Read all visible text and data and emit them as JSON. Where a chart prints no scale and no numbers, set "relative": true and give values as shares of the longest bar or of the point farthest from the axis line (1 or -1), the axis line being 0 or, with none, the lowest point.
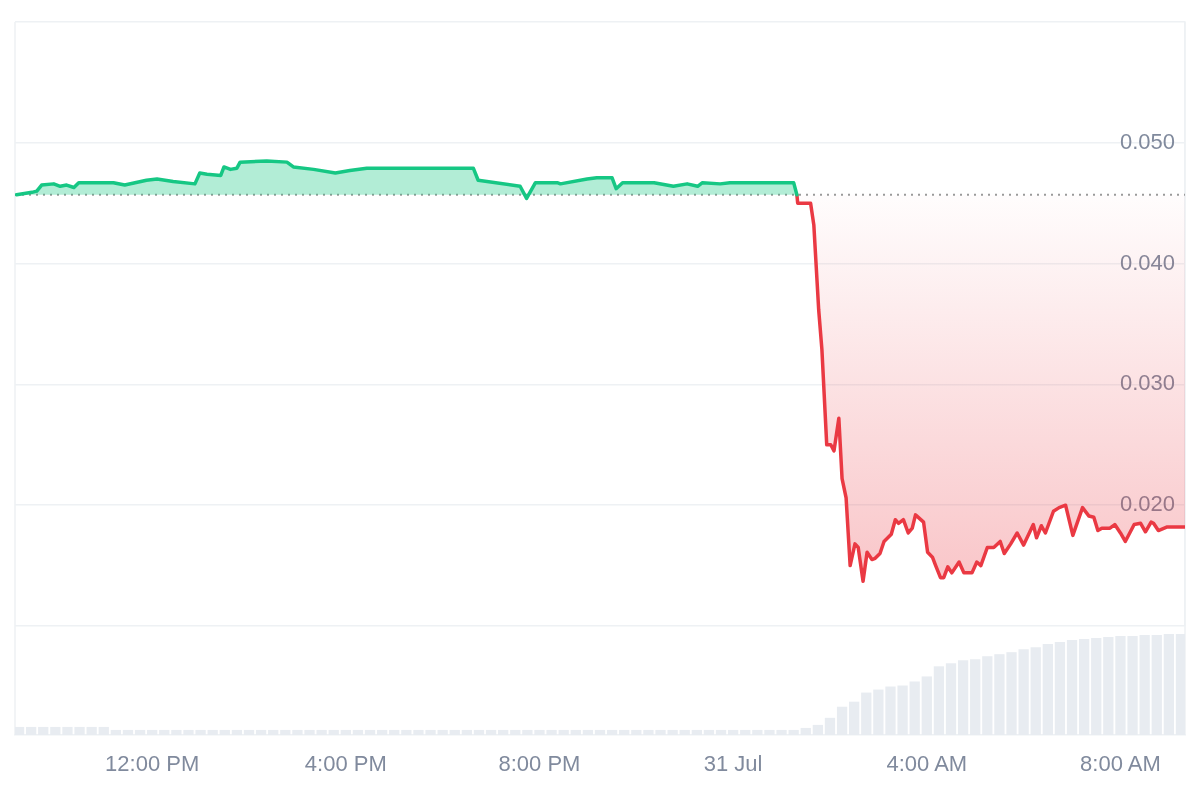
{
  "chart_data": [
    {
      "type": "area",
      "series": [
        {
          "color": "#16c784",
          "x": [
            "--07-30T09:12",
            "--07-30T09:31",
            "--07-30T09:37",
            "--07-30T09:43",
            "--07-30T09:58",
            "--07-30T10:06",
            "--07-30T10:14",
            "--07-30T10:23",
            "--07-30T10:29",
            "--07-30T10:52",
            "--07-30T11:12",
            "--07-30T11:26",
            "--07-30T11:53",
            "--07-30T12:06",
            "--07-30T12:26",
            "--07-30T12:53",
            "--07-30T12:59",
            "--07-30T13:08",
            "--07-30T13:25",
            "--07-30T13:29",
            "--07-30T13:37",
            "--07-30T13:45",
            "--07-30T13:49",
            "--07-30T14:22",
            "--07-30T14:47",
            "--07-30T14:55",
            "--07-30T15:20",
            "--07-30T15:47",
            "--07-30T16:05",
            "--07-30T16:26",
            "--07-30T17:32",
            "--07-30T18:38",
            "--07-30T18:44",
            "--07-30T19:36",
            "--07-30T19:44",
            "--07-30T19:55",
            "--07-30T20:22",
            "--07-30T20:26",
            "--07-30T20:59",
            "--07-30T21:11",
            "--07-30T21:30",
            "--07-30T21:35",
            "--07-30T21:43",
            "--07-30T22:22",
            "--07-30T22:46",
            "--07-30T23:03",
            "--07-30T23:16",
            "--07-30T23:22",
            "--07-30T23:44",
            "--07-30T23:56",
            "--07-31T00:42",
            "--07-31T01:15",
            "--07-31T01:19"
          ],
          "values": [
            0.0457,
            0.0459,
            0.046,
            0.0465,
            0.0466,
            0.0464,
            0.0465,
            0.0463,
            0.0467,
            0.0467,
            0.0467,
            0.0465,
            0.0469,
            0.047,
            0.0468,
            0.0466,
            0.0475,
            0.0474,
            0.0473,
            0.048,
            0.0478,
            0.0479,
            0.0484,
            0.0485,
            0.0484,
            0.048,
            0.0478,
            0.0475,
            0.0477,
            0.0479,
            0.0479,
            0.0479,
            0.0469,
            0.0464,
            0.0454,
            0.0467,
            0.0467,
            0.0466,
            0.047,
            0.0471,
            0.0471,
            0.0462,
            0.0467,
            0.0467,
            0.0464,
            0.0466,
            0.0464,
            0.0467,
            0.0466,
            0.0467,
            0.0467,
            0.0467,
            0.0457
          ]
        },
        {
          "type": "line",
          "color": "#ea3943",
          "x": [
            "--07-31T01:19",
            "--07-31T01:20",
            "--07-31T01:36",
            "--07-31T01:40",
            "--07-31T01:46",
            "--07-31T01:50",
            "--07-31T01:56",
            "--07-31T02:01",
            "--07-31T02:05",
            "--07-31T02:11",
            "--07-31T02:15",
            "--07-31T02:20",
            "--07-31T02:25",
            "--07-31T02:31",
            "--07-31T02:35",
            "--07-31T02:41",
            "--07-31T02:46",
            "--07-31T02:52",
            "--07-31T02:56",
            "--07-31T03:02",
            "--07-31T03:07",
            "--07-31T03:16",
            "--07-31T03:21",
            "--07-31T03:25",
            "--07-31T03:31",
            "--07-31T03:37",
            "--07-31T03:42",
            "--07-31T03:46",
            "--07-31T03:56",
            "--07-31T04:01",
            "--07-31T04:07",
            "--07-31T04:11",
            "--07-31T04:17",
            "--07-31T04:21",
            "--07-31T04:26",
            "--07-31T04:31",
            "--07-31T04:40",
            "--07-31T04:46",
            "--07-31T04:56",
            "--07-31T05:02",
            "--07-31T05:07",
            "--07-31T05:15",
            "--07-31T05:23",
            "--07-31T05:31",
            "--07-31T05:36",
            "--07-31T05:44",
            "--07-31T05:52",
            "--07-31T06:00",
            "--07-31T06:12",
            "--07-31T06:16",
            "--07-31T06:22",
            "--07-31T06:27",
            "--07-31T06:37",
            "--07-31T06:44",
            "--07-31T06:52",
            "--07-31T07:01",
            "--07-31T07:13",
            "--07-31T07:21",
            "--07-31T07:27",
            "--07-31T07:32",
            "--07-31T07:37",
            "--07-31T07:47",
            "--07-31T07:53",
            "--07-31T08:00",
            "--07-31T08:06",
            "--07-31T08:17",
            "--07-31T08:25",
            "--07-31T08:31",
            "--07-31T08:38",
            "--07-31T08:41",
            "--07-31T08:47",
            "--07-31T08:58",
            "--07-31T09:20"
          ],
          "values": [
            0.0457,
            0.045,
            0.045,
            0.0432,
            0.0362,
            0.0329,
            0.025,
            0.025,
            0.0245,
            0.0272,
            0.0222,
            0.0206,
            0.015,
            0.0168,
            0.0165,
            0.0137,
            0.0161,
            0.0155,
            0.0156,
            0.016,
            0.017,
            0.0176,
            0.0188,
            0.0185,
            0.0188,
            0.0177,
            0.0181,
            0.0192,
            0.0186,
            0.0161,
            0.0157,
            0.015,
            0.014,
            0.014,
            0.0149,
            0.0144,
            0.0153,
            0.0144,
            0.0144,
            0.0153,
            0.015,
            0.0165,
            0.0165,
            0.017,
            0.016,
            0.0168,
            0.0177,
            0.0167,
            0.0184,
            0.0173,
            0.0183,
            0.0177,
            0.0195,
            0.0198,
            0.02,
            0.0175,
            0.0198,
            0.0191,
            0.019,
            0.0179,
            0.0181,
            0.0181,
            0.0184,
            0.0177,
            0.017,
            0.0184,
            0.0185,
            0.0178,
            0.0186,
            0.0185,
            0.0179,
            0.0182,
            0.0182
          ],
          "lower": [
            0.0457,
            0.045,
            0.045,
            0.0432,
            0.0362,
            0.0329,
            0.025,
            0.025,
            0.0245,
            0.0272,
            0.0222,
            0.0206,
            0.015,
            0.0168,
            0.0165,
            0.0137,
            0.0161,
            0.0155,
            0.0156,
            0.016,
            0.017,
            0.0176,
            0.0188,
            0.0185,
            0.0188,
            0.0177,
            0.0181,
            0.0192,
            0.0186,
            0.0161,
            0.0157,
            0.015,
            0.014,
            0.014,
            0.0149,
            0.0144,
            0.0153,
            0.0144,
            0.0144,
            0.0153,
            0.015,
            0.0165,
            0.0165,
            0.017,
            0.016,
            0.0168,
            0.0177,
            0.0167,
            0.0184,
            0.0173,
            0.0183,
            0.0177,
            0.0195,
            0.0198,
            0.02,
            0.0175,
            0.0198,
            0.0191,
            0.019,
            0.0179,
            0.0181,
            0.0181,
            0.0184,
            0.0177,
            0.017,
            0.0184,
            0.0185,
            0.0178,
            0.0186,
            0.0185,
            0.0179,
            0.0182,
            0.0182
          ],
          "upper": [
            0.0457,
            0.0457,
            0.0457,
            0.0457,
            0.0457,
            0.0457,
            0.0457,
            0.0457,
            0.0457,
            0.0457,
            0.0457,
            0.0457,
            0.0457,
            0.0457,
            0.0457,
            0.0457,
            0.0457,
            0.0457,
            0.0457,
            0.0457,
            0.0457,
            0.0457,
            0.0457,
            0.0457,
            0.0457,
            0.0457,
            0.0457,
            0.0457,
            0.0457,
            0.0457,
            0.0457,
            0.0457,
            0.0457,
            0.0457,
            0.0457,
            0.0457,
            0.0457,
            0.0457,
            0.0457,
            0.0457,
            0.0457,
            0.0457,
            0.0457,
            0.0457,
            0.0457,
            0.0457,
            0.0457,
            0.0457,
            0.0457,
            0.0457,
            0.0457,
            0.0457,
            0.0457,
            0.0457,
            0.0457,
            0.0457,
            0.0457,
            0.0457,
            0.0457,
            0.0457,
            0.0457,
            0.0457,
            0.0457,
            0.0457,
            0.0457,
            0.0457,
            0.0457,
            0.0457,
            0.0457,
            0.0457,
            0.0457,
            0.0457,
            0.0457
          ]
        }
      ],
      "xlim": [
        "--07-30T09:10",
        "--07-31T09:20"
      ],
      "ylim": [
        0.01,
        0.06
      ],
      "yticks": [
        {
          "value": 0.01,
          "label": null
        },
        {
          "value": 0.02,
          "label": "0.020"
        },
        {
          "value": 0.03,
          "label": "0.030"
        },
        {
          "value": 0.04,
          "label": "0.040"
        },
        {
          "value": 0.05,
          "label": "0.050"
        },
        {
          "value": 0.06,
          "label": null
        }
      ],
      "grid": "y",
      "tick_labels": "y",
      "marker": "none",
      "ref_lines": [
        {
          "axis": "y",
          "value": 0.0457,
          "color": "#9a9a9a",
          "line_style": "dotted"
        }
      ]
    },
    {
      "type": "bar",
      "relative": true,
      "color": "#e8ecf1",
      "x": [
        "--07-30T09:15",
        "--07-30T09:30",
        "--07-30T09:45",
        "--07-30T10:00",
        "--07-30T10:15",
        "--07-30T10:30",
        "--07-30T10:45",
        "--07-30T11:00",
        "--07-30T11:15",
        "--07-30T11:30",
        "--07-30T11:45",
        "--07-30T12:00",
        "--07-30T12:15",
        "--07-30T12:30",
        "--07-30T12:45",
        "--07-30T13:00",
        "--07-30T13:15",
        "--07-30T13:30",
        "--07-30T13:45",
        "--07-30T14:00",
        "--07-30T14:15",
        "--07-30T14:30",
        "--07-30T14:45",
        "--07-30T15:00",
        "--07-30T15:15",
        "--07-30T15:30",
        "--07-30T15:45",
        "--07-30T16:00",
        "--07-30T16:15",
        "--07-30T16:30",
        "--07-30T16:45",
        "--07-30T17:00",
        "--07-30T17:15",
        "--07-30T17:30",
        "--07-30T17:45",
        "--07-30T18:00",
        "--07-30T18:15",
        "--07-30T18:30",
        "--07-30T18:45",
        "--07-30T19:00",
        "--07-30T19:15",
        "--07-30T19:30",
        "--07-30T19:45",
        "--07-30T20:00",
        "--07-30T20:15",
        "--07-30T20:30",
        "--07-30T20:45",
        "--07-30T21:00",
        "--07-30T21:15",
        "--07-30T21:30",
        "--07-30T21:45",
        "--07-30T22:00",
        "--07-30T22:15",
        "--07-30T22:30",
        "--07-30T22:45",
        "--07-30T23:00",
        "--07-30T23:15",
        "--07-30T23:30",
        "--07-30T23:45",
        "--07-31T00:00",
        "--07-31T00:15",
        "--07-31T00:30",
        "--07-31T00:45",
        "--07-31T01:00",
        "--07-31T01:15",
        "--07-31T01:30",
        "--07-31T01:45",
        "--07-31T02:00",
        "--07-31T02:15",
        "--07-31T02:30",
        "--07-31T02:45",
        "--07-31T03:00",
        "--07-31T03:15",
        "--07-31T03:30",
        "--07-31T03:45",
        "--07-31T04:00",
        "--07-31T04:15",
        "--07-31T04:30",
        "--07-31T04:45",
        "--07-31T05:00",
        "--07-31T05:15",
        "--07-31T05:30",
        "--07-31T05:45",
        "--07-31T06:00",
        "--07-31T06:15",
        "--07-31T06:30",
        "--07-31T06:45",
        "--07-31T07:00",
        "--07-31T07:15",
        "--07-31T07:30",
        "--07-31T07:45",
        "--07-31T08:00",
        "--07-31T08:15",
        "--07-31T08:30",
        "--07-31T08:45",
        "--07-31T09:00",
        "--07-31T09:15"
      ],
      "values": [
        0.08,
        0.08,
        0.08,
        0.08,
        0.08,
        0.08,
        0.08,
        0.08,
        0.05,
        0.05,
        0.05,
        0.05,
        0.05,
        0.05,
        0.05,
        0.05,
        0.05,
        0.05,
        0.05,
        0.05,
        0.05,
        0.05,
        0.05,
        0.05,
        0.05,
        0.05,
        0.05,
        0.05,
        0.05,
        0.05,
        0.05,
        0.05,
        0.05,
        0.05,
        0.05,
        0.05,
        0.05,
        0.05,
        0.05,
        0.05,
        0.05,
        0.05,
        0.05,
        0.05,
        0.05,
        0.05,
        0.05,
        0.05,
        0.05,
        0.05,
        0.05,
        0.05,
        0.05,
        0.05,
        0.05,
        0.05,
        0.05,
        0.05,
        0.05,
        0.05,
        0.05,
        0.05,
        0.05,
        0.05,
        0.05,
        0.07,
        0.1,
        0.17,
        0.28,
        0.33,
        0.42,
        0.45,
        0.48,
        0.49,
        0.53,
        0.58,
        0.68,
        0.71,
        0.74,
        0.75,
        0.78,
        0.8,
        0.82,
        0.85,
        0.87,
        0.9,
        0.92,
        0.94,
        0.95,
        0.96,
        0.97,
        0.98,
        0.98,
        0.99,
        0.99,
        1,
        1
      ],
      "xlim": [
        "--07-30T09:10",
        "--07-31T09:20"
      ],
      "xticks": [
        {
          "value": "--07-30T12:00",
          "label": "12:00 PM"
        },
        {
          "value": "--07-30T16:00",
          "label": "4:00 PM"
        },
        {
          "value": "--07-30T20:00",
          "label": "8:00 PM"
        },
        {
          "value": "--07-31T00:00",
          "label": "31 Jul"
        },
        {
          "value": "--07-31T04:00",
          "label": "4:00 AM"
        },
        {
          "value": "--07-31T08:00",
          "label": "8:00 AM"
        }
      ],
      "tick_labels": "x"
    }
  ]
}
